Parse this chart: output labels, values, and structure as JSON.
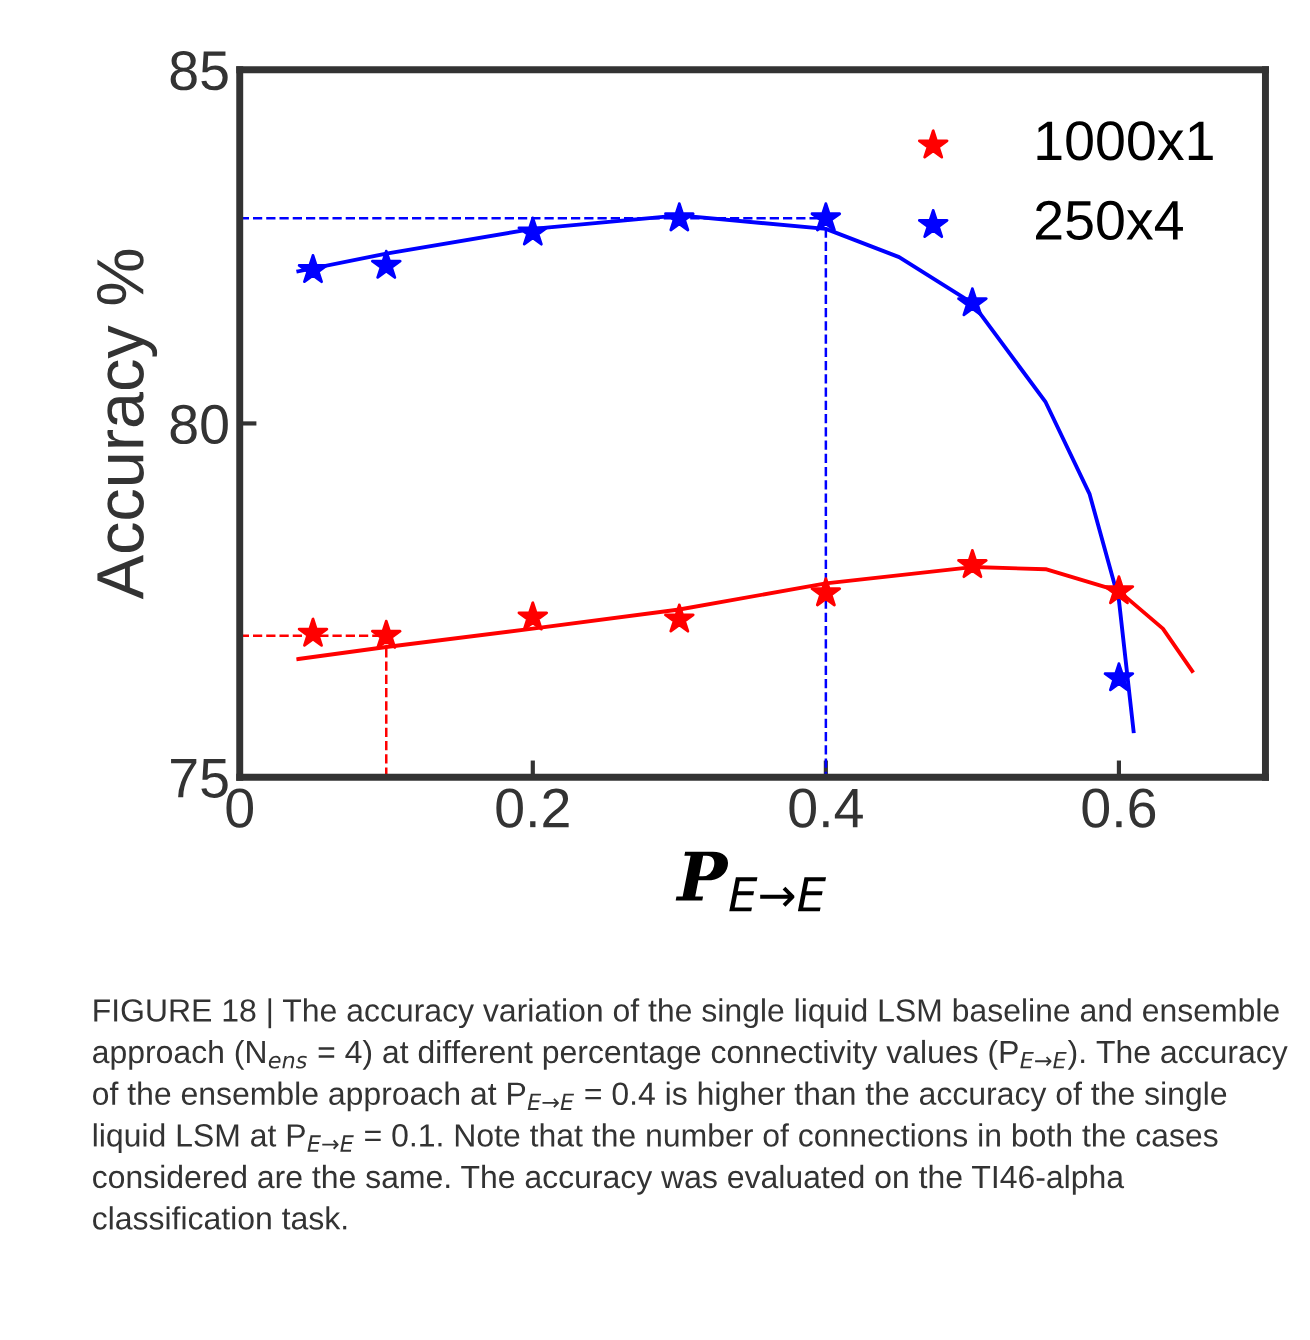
{
  "chart_data": {
    "type": "scatter",
    "xlabel": "P$_{E→E}$",
    "ylabel": "Accuracy %",
    "xlim": [
      0,
      0.7
    ],
    "ylim": [
      75,
      85
    ],
    "xticks": [
      0,
      0.2,
      0.4,
      0.6
    ],
    "yticks": [
      75,
      80,
      85
    ],
    "grid": false,
    "legend": "top right",
    "marker": "star",
    "series": [
      {
        "name": "1000x1",
        "color": "#ff0000",
        "x": [
          0.05,
          0.1,
          0.2,
          0.3,
          0.4,
          0.5,
          0.6
        ],
        "values": [
          77.03,
          77.0,
          77.26,
          77.23,
          77.6,
          78.0,
          77.63
        ]
      },
      {
        "name": "250x4",
        "color": "#0000ff",
        "x": [
          0.05,
          0.1,
          0.2,
          0.3,
          0.4,
          0.5,
          0.6
        ],
        "values": [
          82.17,
          82.23,
          82.7,
          82.9,
          82.9,
          81.7,
          76.4
        ]
      },
      {
        "type": "line",
        "color": "#ff0000",
        "marker": "none",
        "x": [
          0.04,
          0.1,
          0.2,
          0.3,
          0.4,
          0.5,
          0.55,
          0.6,
          0.63,
          0.65
        ],
        "values": [
          76.67,
          76.84,
          77.1,
          77.37,
          77.74,
          77.97,
          77.94,
          77.63,
          77.1,
          76.5
        ]
      },
      {
        "type": "line",
        "color": "#0000ff",
        "marker": "none",
        "x": [
          0.04,
          0.1,
          0.2,
          0.3,
          0.4,
          0.45,
          0.5,
          0.55,
          0.58,
          0.6,
          0.61
        ],
        "values": [
          82.15,
          82.4,
          82.75,
          82.94,
          82.75,
          82.35,
          81.7,
          80.3,
          79.0,
          77.5,
          75.65
        ]
      },
      {
        "type": "line",
        "color": "#0000ff",
        "marker": "none",
        "line_style": "dashed",
        "x": [
          0,
          0.4,
          0.4
        ],
        "values": [
          82.9,
          82.9,
          75
        ]
      },
      {
        "type": "line",
        "color": "#ff0000",
        "marker": "none",
        "line_style": "dashed",
        "x": [
          0,
          0.1,
          0.1
        ],
        "values": [
          77.0,
          77.0,
          75
        ]
      }
    ],
    "annotations": [
      "FIGURE 18 | The accuracy variation of the single liquid LSM baseline and ensemble approach (N$_{ens}$ = 4) at different percentage connectivity values (P$_{E→E}$). The accuracy of the ensemble approach at P$_{E→E}$ = 0.4 is higher than the accuracy of the single liquid LSM at P$_{E→E}$ = 0.1. Note that the number of connections in both the cases considered are the same. The accuracy was evaluated on the TI46-alpha classification task."
    ]
  }
}
